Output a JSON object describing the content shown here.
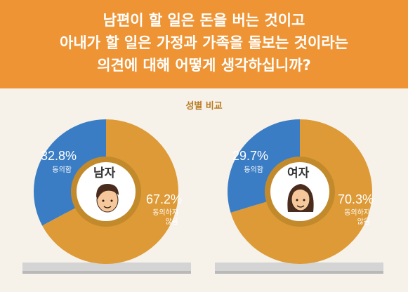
{
  "title": {
    "line1": "남편이 할 일은 돈을 버는 것이고",
    "line2": "아내가 할 일은 가정과 가족을 돌보는 것이라는",
    "line3": "의견에 대해 어떻게 생각하십니까?"
  },
  "subtitle": "성별 비교",
  "colors": {
    "header": "#ee9434",
    "agree": "#3b7dc4",
    "disagree": "#dd9a36",
    "inner": "#c38a2c",
    "background": "#f6f2ea"
  },
  "chart_data": [
    {
      "type": "pie",
      "title": "남자",
      "slices": [
        {
          "label": "동의함",
          "value": 32.8,
          "value_text": "32.8%"
        },
        {
          "label": "동의하지 않음",
          "value": 67.2,
          "value_text": "67.2%"
        }
      ]
    },
    {
      "type": "pie",
      "title": "여자",
      "slices": [
        {
          "label": "동의함",
          "value": 29.7,
          "value_text": "29.7%"
        },
        {
          "label": "동의하지 않음",
          "value": 70.3,
          "value_text": "70.3%"
        }
      ]
    }
  ],
  "labels": {
    "agree": "동의함",
    "disagree_line1": "동의하지",
    "disagree_line2": "않음"
  }
}
